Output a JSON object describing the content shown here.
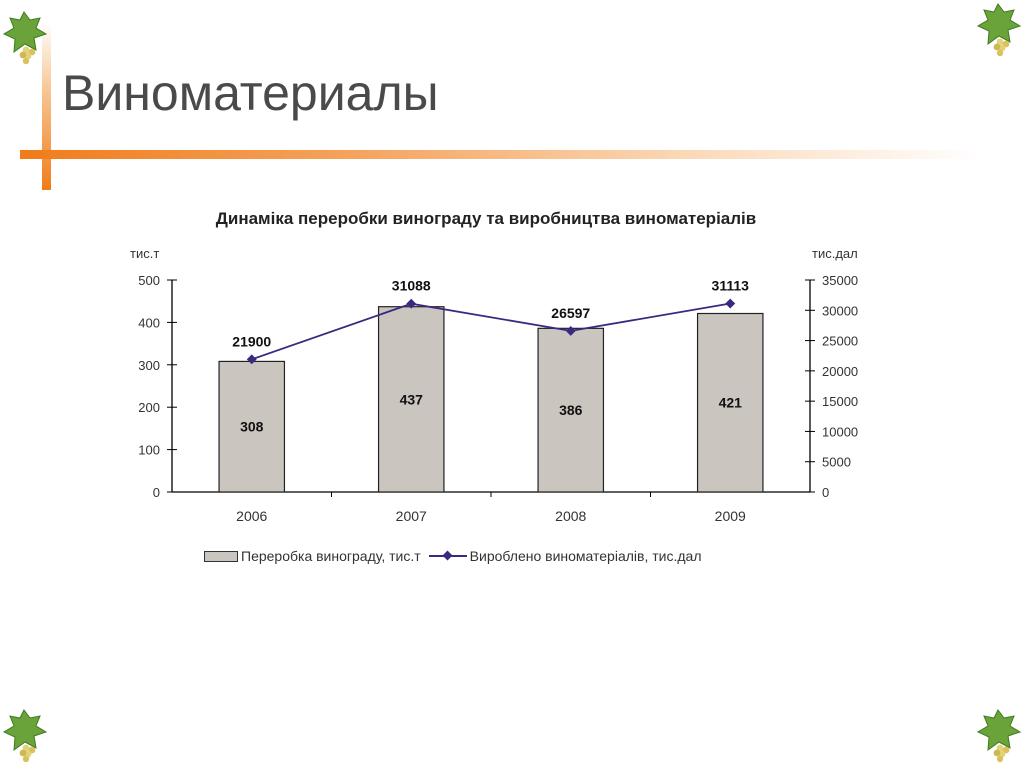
{
  "slide": {
    "title": "Виноматериалы",
    "accent_color": "#f07c1a"
  },
  "decor": {
    "corner_icon": "grape-leaf-icon"
  },
  "chart_data": {
    "type": "bar",
    "title": "Динаміка переробки винограду та виробництва виноматеріалів",
    "categories": [
      "2006",
      "2007",
      "2008",
      "2009"
    ],
    "y_left_label": "тис.т",
    "y_right_label": "тис.дал",
    "ylim_left": [
      0,
      500
    ],
    "ylim_right": [
      0,
      35000
    ],
    "yticks_left": [
      "0",
      "100",
      "200",
      "300",
      "400",
      "500"
    ],
    "yticks_right": [
      "0",
      "5000",
      "10000",
      "15000",
      "20000",
      "25000",
      "30000",
      "35000"
    ],
    "grid": false,
    "legend_position": "bottom",
    "series": [
      {
        "name": "Переробка винограду, тис.т",
        "kind": "bar",
        "axis": "left",
        "values": [
          308,
          437,
          386,
          421
        ],
        "labels": [
          "308",
          "437",
          "386",
          "421"
        ],
        "color": "#cbc5bf"
      },
      {
        "name": "Вироблено виноматеріалів, тис.дал",
        "kind": "line",
        "axis": "right",
        "values": [
          21900,
          31088,
          26597,
          31113
        ],
        "labels": [
          "21900",
          "31088",
          "26597",
          "31113"
        ],
        "color": "#3d2880"
      }
    ]
  }
}
